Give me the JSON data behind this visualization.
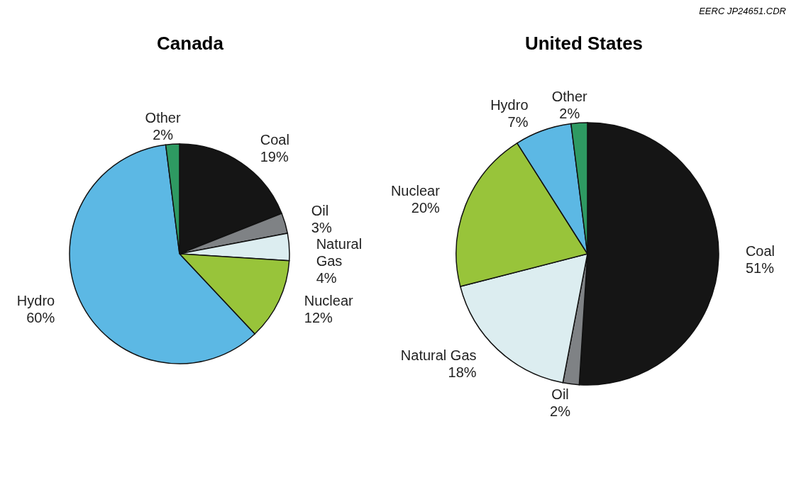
{
  "chart_data": [
    {
      "type": "pie",
      "title": "Canada",
      "categories": [
        "Coal",
        "Oil",
        "Natural Gas",
        "Nuclear",
        "Hydro",
        "Other"
      ],
      "values": [
        19,
        3,
        4,
        12,
        60,
        2
      ],
      "value_labels": [
        "19%",
        "3%",
        "4%",
        "12%",
        "60%",
        "2%"
      ],
      "colors": [
        "#151515",
        "#7f8285",
        "#dcedf0",
        "#98c43a",
        "#5cb8e4",
        "#2e9a62"
      ]
    },
    {
      "type": "pie",
      "title": "United States",
      "categories": [
        "Coal",
        "Oil",
        "Natural Gas",
        "Nuclear",
        "Hydro",
        "Other"
      ],
      "values": [
        51,
        2,
        18,
        20,
        7,
        2
      ],
      "value_labels": [
        "51%",
        "2%",
        "18%",
        "20%",
        "7%",
        "2%"
      ],
      "colors": [
        "#151515",
        "#7f8285",
        "#dcedf0",
        "#98c43a",
        "#5cb8e4",
        "#2e9a62"
      ],
      "annotations": [
        "EERC JP24651.CDR"
      ]
    }
  ]
}
